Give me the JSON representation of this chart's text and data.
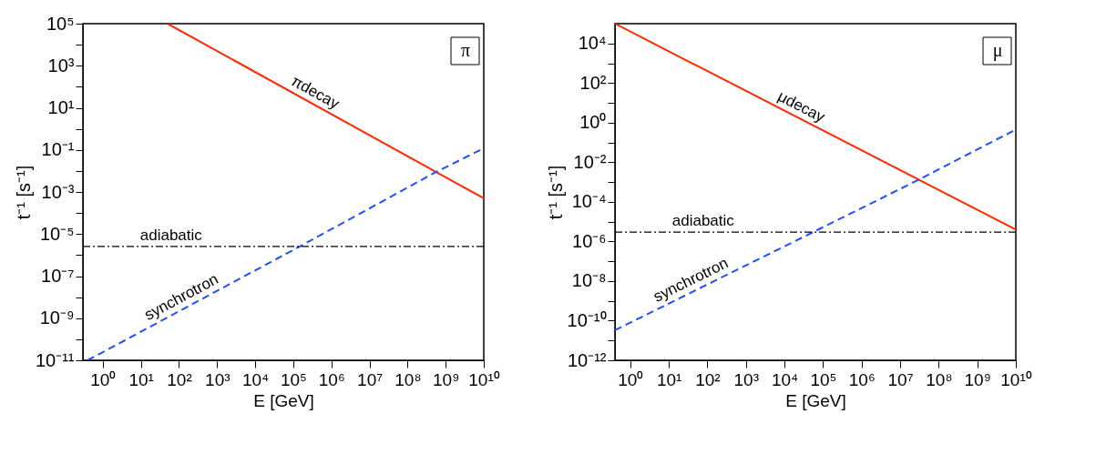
{
  "chart_data": [
    {
      "type": "line",
      "xlabel": "E [GeV]",
      "ylabel": "t⁻¹ [s⁻¹]",
      "log": "xy",
      "grid": false,
      "marker": "none",
      "xlim": [
        0.3,
        10000000000.0
      ],
      "ylim": [
        1e-11,
        100000.0
      ],
      "xticks": [
        {
          "value": 1,
          "label": "10⁰"
        },
        {
          "value": 10,
          "label": "10¹"
        },
        {
          "value": 100,
          "label": "10²"
        },
        {
          "value": 1000.0,
          "label": "10³"
        },
        {
          "value": 10000.0,
          "label": "10⁴"
        },
        {
          "value": 100000.0,
          "label": "10⁵"
        },
        {
          "value": 1000000.0,
          "label": "10⁶"
        },
        {
          "value": 10000000.0,
          "label": "10⁷"
        },
        {
          "value": 100000000.0,
          "label": "10⁸"
        },
        {
          "value": 1000000000.0,
          "label": "10⁹"
        },
        {
          "value": 10000000000.0,
          "label": "10¹⁰"
        }
      ],
      "yticks": [
        {
          "value": 1e-11,
          "label": "10⁻¹¹"
        },
        {
          "value": 1e-10,
          "label": null
        },
        {
          "value": 1e-09,
          "label": "10⁻⁹"
        },
        {
          "value": 1e-08,
          "label": null
        },
        {
          "value": 1e-07,
          "label": "10⁻⁷"
        },
        {
          "value": 1e-06,
          "label": null
        },
        {
          "value": 1e-05,
          "label": "10⁻⁵"
        },
        {
          "value": 0.0001,
          "label": null
        },
        {
          "value": 0.001,
          "label": "10⁻³"
        },
        {
          "value": 0.01,
          "label": null
        },
        {
          "value": 0.1,
          "label": "10⁻¹"
        },
        {
          "value": 1,
          "label": null
        },
        {
          "value": 10,
          "label": "10¹"
        },
        {
          "value": 100,
          "label": null
        },
        {
          "value": 1000.0,
          "label": "10³"
        },
        {
          "value": 10000.0,
          "label": null
        },
        {
          "value": 100000.0,
          "label": "10⁵"
        }
      ],
      "series": [
        {
          "color": "#ff2a00",
          "line_style": "solid",
          "x": [
            50,
            10000000000.0
          ],
          "values": [
            100000.0,
            0.0005
          ]
        },
        {
          "color": "#1f4fff",
          "line_style": "dashed",
          "x": [
            0.4,
            150000.0,
            500000000.0,
            10000000000.0
          ],
          "values": [
            1e-11,
            2.6e-06,
            0.008,
            0.12
          ]
        }
      ],
      "ref_lines": [
        {
          "axis": "y",
          "value": 2.6e-06,
          "label": "adiabatic",
          "color": "#000000",
          "line_style": "dashdot"
        }
      ],
      "annotations": [
        {
          "text": "πdecay",
          "x": 270000.0,
          "y": 18.5
        },
        {
          "text": "synchrotron",
          "x": 160,
          "y": 3.4e-09
        },
        "π"
      ]
    },
    {
      "type": "line",
      "xlabel": "E [GeV]",
      "ylabel": "t⁻¹ [s⁻¹]",
      "log": "xy",
      "grid": false,
      "marker": "none",
      "xlim": [
        0.4,
        10000000000.0
      ],
      "ylim": [
        1e-12,
        100000.0
      ],
      "xticks": [
        {
          "value": 1,
          "label": "10⁰"
        },
        {
          "value": 10,
          "label": "10¹"
        },
        {
          "value": 100,
          "label": "10²"
        },
        {
          "value": 1000.0,
          "label": "10³"
        },
        {
          "value": 10000.0,
          "label": "10⁴"
        },
        {
          "value": 100000.0,
          "label": "10⁵"
        },
        {
          "value": 1000000.0,
          "label": "10⁶"
        },
        {
          "value": 10000000.0,
          "label": "10⁷"
        },
        {
          "value": 100000000.0,
          "label": "10⁸"
        },
        {
          "value": 1000000000.0,
          "label": "10⁹"
        },
        {
          "value": 10000000000.0,
          "label": "10¹⁰"
        }
      ],
      "yticks": [
        {
          "value": 1e-12,
          "label": "10⁻¹²"
        },
        {
          "value": 1e-11,
          "label": null
        },
        {
          "value": 1e-10,
          "label": "10⁻¹⁰"
        },
        {
          "value": 1e-09,
          "label": null
        },
        {
          "value": 1e-08,
          "label": "10⁻⁸"
        },
        {
          "value": 1e-07,
          "label": null
        },
        {
          "value": 1e-06,
          "label": "10⁻⁶"
        },
        {
          "value": 1e-05,
          "label": null
        },
        {
          "value": 0.0001,
          "label": "10⁻⁴"
        },
        {
          "value": 0.001,
          "label": null
        },
        {
          "value": 0.01,
          "label": "10⁻²"
        },
        {
          "value": 0.1,
          "label": null
        },
        {
          "value": 1,
          "label": "10⁰"
        },
        {
          "value": 10,
          "label": null
        },
        {
          "value": 100,
          "label": "10²"
        },
        {
          "value": 1000.0,
          "label": null
        },
        {
          "value": 10000.0,
          "label": "10⁴"
        }
      ],
      "series": [
        {
          "color": "#ff2a00",
          "line_style": "solid",
          "x": [
            0.4,
            10000000000.0
          ],
          "values": [
            100000.0,
            4e-06
          ]
        },
        {
          "color": "#1f4fff",
          "line_style": "dashed",
          "x": [
            0.4,
            56000.0,
            30000000.0,
            10000000000.0
          ],
          "values": [
            3.3e-11,
            3e-06,
            0.0013,
            0.45
          ]
        }
      ],
      "ref_lines": [
        {
          "axis": "y",
          "value": 3e-06,
          "label": "adiabatic",
          "color": "#000000",
          "line_style": "dashdot"
        }
      ],
      "annotations": [
        {
          "text": "μdecay",
          "x": 20000.0,
          "y": 2
        },
        {
          "text": "synchrotron",
          "x": 50,
          "y": 3.5e-09
        },
        "μ"
      ]
    }
  ]
}
